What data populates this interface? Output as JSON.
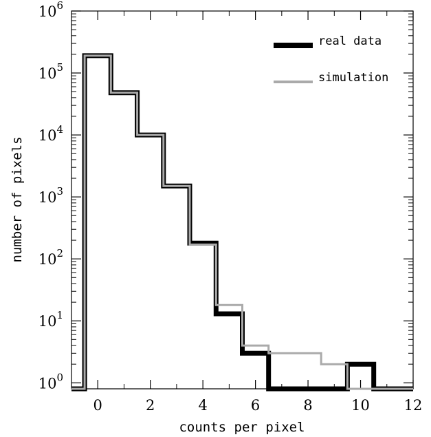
{
  "chart_data": {
    "type": "line",
    "step": true,
    "title": "",
    "xlabel": "counts per pixel",
    "ylabel": "number of pixels",
    "xlim": [
      -1,
      12
    ],
    "ylim": [
      0.8,
      1000000
    ],
    "yscale": "log",
    "grid": false,
    "legend_position": "top-right",
    "x_ticks": [
      {
        "value": 0,
        "label": "0"
      },
      {
        "value": 2,
        "label": "2"
      },
      {
        "value": 4,
        "label": "4"
      },
      {
        "value": 6,
        "label": "6"
      },
      {
        "value": 8,
        "label": "8"
      },
      {
        "value": 10,
        "label": "10"
      },
      {
        "value": 12,
        "label": "12"
      }
    ],
    "y_ticks": [
      {
        "value": 1,
        "base": "10",
        "exp": "0"
      },
      {
        "value": 10,
        "base": "10",
        "exp": "1"
      },
      {
        "value": 100,
        "base": "10",
        "exp": "2"
      },
      {
        "value": 1000,
        "base": "10",
        "exp": "3"
      },
      {
        "value": 10000,
        "base": "10",
        "exp": "4"
      },
      {
        "value": 100000,
        "base": "10",
        "exp": "5"
      },
      {
        "value": 1000000,
        "base": "10",
        "exp": "6"
      }
    ],
    "x": [
      0,
      1,
      2,
      3,
      4,
      5,
      6,
      7,
      8,
      9,
      10,
      11
    ],
    "series": [
      {
        "name": "real data",
        "color": "#000000",
        "values": [
          190000,
          48000,
          10000,
          1500,
          180,
          13,
          3,
          0.8,
          0.8,
          0.8,
          2,
          0.8
        ]
      },
      {
        "name": "simulation",
        "color": "#aaaaaa",
        "values": [
          190000,
          48000,
          10000,
          1500,
          170,
          18,
          4,
          3,
          3,
          2,
          0.8,
          0.8
        ]
      }
    ]
  }
}
